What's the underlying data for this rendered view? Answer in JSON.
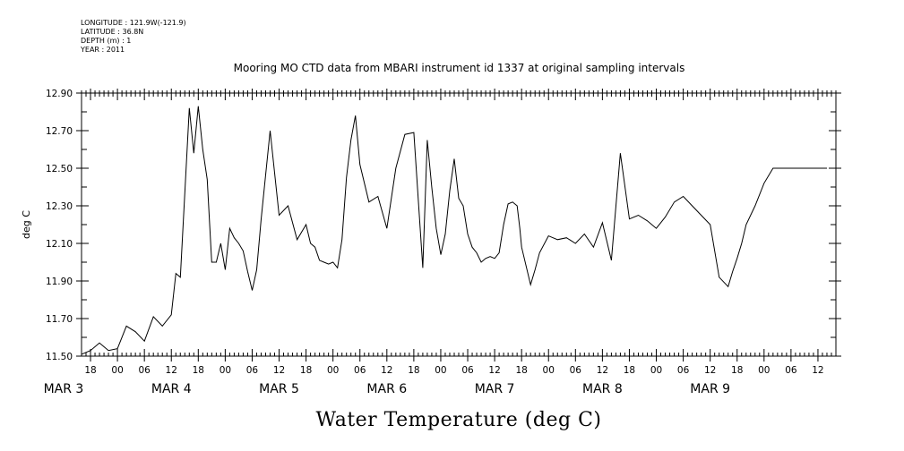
{
  "header": {
    "longitude": "LONGITUDE : 121.9W(-121.9)",
    "latitude": "LATITUDE : 36.8N",
    "depth": "DEPTH (m) : 1",
    "year": "YEAR : 2011"
  },
  "chart_data": {
    "type": "line",
    "title": "Mooring MO CTD data from MBARI instrument id 1337 at original sampling intervals",
    "xlabel": "Water Temperature (deg C)",
    "ylabel": "deg C",
    "ylim": [
      11.5,
      12.9
    ],
    "y_ticks": [
      "11.50",
      "11.70",
      "11.90",
      "12.10",
      "12.30",
      "12.50",
      "12.70",
      "12.90"
    ],
    "x_range_hours": [
      -8,
      160
    ],
    "hour_ticks": [
      "00",
      "06",
      "12",
      "18"
    ],
    "day_labels": [
      "MAR 3",
      "MAR 4",
      "MAR 5",
      "MAR 6",
      "MAR 7",
      "MAR 8",
      "MAR 9"
    ],
    "series": [
      {
        "x": [
          -8,
          -6,
          -4,
          -2,
          0,
          2,
          4,
          6,
          8,
          10,
          12,
          13,
          14,
          16,
          17,
          18,
          19,
          20,
          21,
          22,
          23,
          24,
          25,
          26,
          27,
          28,
          29,
          30,
          31,
          32,
          34,
          36,
          38,
          40,
          42,
          43,
          44,
          45,
          46,
          47,
          48,
          49,
          50,
          51,
          52,
          53,
          54,
          56,
          58,
          60,
          62,
          64,
          66,
          68,
          69,
          70,
          71,
          72,
          73,
          74,
          75,
          76,
          77,
          78,
          79,
          80,
          81,
          82,
          83,
          84,
          85,
          86,
          87,
          88,
          89,
          89.3,
          89.6,
          90,
          92,
          93,
          94,
          96,
          98,
          100,
          102,
          104,
          106,
          108,
          110,
          112,
          114,
          116,
          118,
          120,
          122,
          124,
          126,
          128,
          130,
          132,
          134,
          136,
          137,
          138,
          139,
          140,
          142,
          144,
          146,
          148,
          150,
          152,
          154,
          155,
          156,
          157,
          158
        ],
        "y": [
          11.51,
          11.53,
          11.57,
          11.53,
          11.54,
          11.66,
          11.63,
          11.58,
          11.71,
          11.66,
          11.72,
          11.94,
          11.92,
          12.82,
          12.58,
          12.83,
          12.6,
          12.44,
          12.0,
          12.0,
          12.1,
          11.96,
          12.18,
          12.13,
          12.1,
          12.06,
          11.95,
          11.85,
          11.96,
          12.23,
          12.7,
          12.25,
          12.3,
          12.12,
          12.2,
          12.1,
          12.08,
          12.01,
          12.0,
          11.99,
          12.0,
          11.97,
          12.12,
          12.45,
          12.65,
          12.78,
          12.52,
          12.32,
          12.35,
          12.18,
          12.5,
          12.68,
          12.69,
          11.97,
          12.65,
          12.4,
          12.18,
          12.04,
          12.15,
          12.38,
          12.55,
          12.34,
          12.3,
          12.15,
          12.08,
          12.05,
          12.0,
          12.02,
          12.03,
          12.02,
          12.05,
          12.2,
          12.31,
          12.32,
          12.3,
          12.24,
          12.18,
          12.08,
          11.88,
          11.96,
          12.05,
          12.14,
          12.12,
          12.13,
          12.1,
          12.15,
          12.08,
          12.21,
          12.01,
          12.58,
          12.23,
          12.25,
          12.22,
          12.18,
          12.24,
          12.32,
          12.35,
          12.3,
          12.25,
          12.2,
          11.92,
          11.87,
          11.95,
          12.02,
          12.1,
          12.2,
          12.3,
          12.42,
          12.5,
          12.5,
          12.5,
          12.5,
          12.5,
          12.5,
          12.5,
          12.5,
          12.5
        ]
      }
    ]
  }
}
